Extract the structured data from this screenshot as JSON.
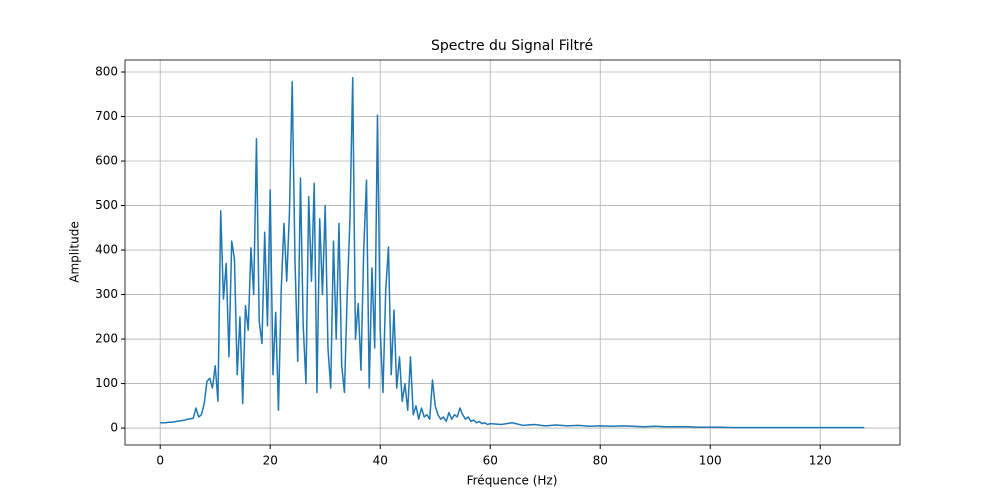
{
  "chart_data": {
    "type": "line",
    "title": "Spectre du Signal Filtré",
    "xlabel": "Fréquence (Hz)",
    "ylabel": "Amplitude",
    "x": [
      0,
      0.5,
      1,
      1.5,
      2,
      2.5,
      3,
      3.5,
      4,
      4.5,
      5,
      5.5,
      6,
      6.5,
      7,
      7.5,
      8,
      8.5,
      9,
      9.5,
      10,
      10.5,
      11,
      11.5,
      12,
      12.5,
      13,
      13.5,
      14,
      14.5,
      15,
      15.5,
      16,
      16.5,
      17,
      17.5,
      18,
      18.5,
      19,
      19.5,
      20,
      20.5,
      21,
      21.5,
      22,
      22.5,
      23,
      23.5,
      24,
      24.5,
      25,
      25.5,
      26,
      26.5,
      27,
      27.5,
      28,
      28.5,
      29,
      29.5,
      30,
      30.5,
      31,
      31.5,
      32,
      32.5,
      33,
      33.5,
      34,
      34.5,
      35,
      35.5,
      36,
      36.5,
      37,
      37.5,
      38,
      38.5,
      39,
      39.5,
      40,
      40.5,
      41,
      41.5,
      42,
      42.5,
      43,
      43.5,
      44,
      44.5,
      45,
      45.5,
      46,
      46.5,
      47,
      47.5,
      48,
      48.5,
      49,
      49.5,
      50,
      50.5,
      51,
      51.5,
      52,
      52.5,
      53,
      53.5,
      54,
      54.5,
      55,
      55.5,
      56,
      56.5,
      57,
      57.5,
      58,
      58.5,
      59,
      59.5,
      60,
      62,
      64,
      66,
      68,
      70,
      72,
      74,
      76,
      78,
      80,
      82,
      84,
      86,
      88,
      90,
      92,
      94,
      96,
      98,
      100,
      102,
      104,
      106,
      108,
      110,
      112,
      114,
      116,
      118,
      120,
      122,
      124,
      126,
      128
    ],
    "series": [
      {
        "name": "Amplitude",
        "color": "#1f77b4",
        "values": [
          12,
          12,
          12,
          13,
          13,
          14,
          15,
          16,
          17,
          18,
          20,
          21,
          22,
          45,
          25,
          30,
          55,
          105,
          112,
          90,
          140,
          60,
          488,
          290,
          370,
          160,
          420,
          380,
          120,
          250,
          55,
          275,
          220,
          405,
          300,
          650,
          240,
          190,
          440,
          230,
          535,
          120,
          260,
          40,
          310,
          460,
          330,
          485,
          778,
          380,
          150,
          562,
          230,
          100,
          520,
          330,
          550,
          80,
          470,
          300,
          500,
          180,
          90,
          420,
          200,
          460,
          140,
          80,
          300,
          470,
          787,
          200,
          280,
          130,
          400,
          557,
          90,
          360,
          180,
          703,
          220,
          80,
          310,
          407,
          120,
          265,
          90,
          160,
          60,
          100,
          40,
          160,
          30,
          50,
          20,
          45,
          25,
          30,
          20,
          108,
          50,
          30,
          20,
          25,
          15,
          35,
          20,
          30,
          25,
          45,
          30,
          20,
          25,
          15,
          18,
          12,
          15,
          10,
          12,
          8,
          10,
          8,
          12,
          6,
          8,
          5,
          7,
          5,
          6,
          4,
          5,
          4,
          5,
          4,
          3,
          4,
          3,
          3,
          3,
          2,
          2,
          2,
          1,
          1,
          1,
          1,
          1,
          1,
          1,
          1,
          1,
          1,
          1,
          1,
          1
        ]
      }
    ],
    "xlim": [
      -6.4,
      134.5
    ],
    "ylim": [
      -38,
      827
    ],
    "xticks": [
      0,
      20,
      40,
      60,
      80,
      100,
      120
    ],
    "yticks": [
      0,
      100,
      200,
      300,
      400,
      500,
      600,
      700,
      800
    ],
    "grid": true
  }
}
